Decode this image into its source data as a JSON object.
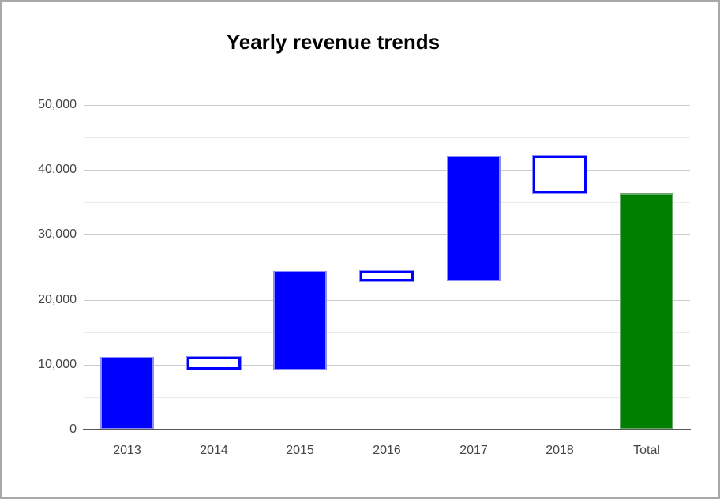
{
  "chart_data": {
    "type": "waterfall",
    "title": "Yearly revenue trends",
    "legend_position": "none",
    "grid": true,
    "categories": [
      "2013",
      "2014",
      "2015",
      "2016",
      "2017",
      "2018",
      "Total"
    ],
    "ylim": [
      0,
      50000
    ],
    "y_axis": {
      "major_ticks": [
        {
          "label": "50,000",
          "value": 50000
        },
        {
          "label": "40,000",
          "value": 40000
        },
        {
          "label": "30,000",
          "value": 30000
        },
        {
          "label": "20,000",
          "value": 20000
        },
        {
          "label": "10,000",
          "value": 10000
        },
        {
          "label": "0",
          "value": 0
        }
      ],
      "minor_tick_values": [
        45000,
        35000,
        25000,
        15000,
        5000
      ]
    },
    "bars": [
      {
        "label": "2013",
        "low": 0,
        "high": 11200,
        "style": "rise"
      },
      {
        "label": "2014",
        "low": 9200,
        "high": 11200,
        "style": "fall"
      },
      {
        "label": "2015",
        "low": 9200,
        "high": 24500,
        "style": "rise"
      },
      {
        "label": "2016",
        "low": 22900,
        "high": 24500,
        "style": "fall"
      },
      {
        "label": "2017",
        "low": 22900,
        "high": 42200,
        "style": "rise"
      },
      {
        "label": "2018",
        "low": 36400,
        "high": 42200,
        "style": "fall"
      },
      {
        "label": "Total",
        "low": 0,
        "high": 36400,
        "style": "total"
      }
    ],
    "colors": {
      "rise_fill": "#0000ff",
      "rise_stroke": "#8d8df6",
      "fall_fill": "#ffffff",
      "fall_stroke": "#0000ff",
      "total_fill": "#008000",
      "total_stroke": "#6aaa6a",
      "major_grid": "#cccccc",
      "minor_grid": "#ebebeb",
      "baseline": "#565656",
      "axis_text": "#444444",
      "title_text": "#000000",
      "frame_border": "#a9a9a9"
    }
  }
}
